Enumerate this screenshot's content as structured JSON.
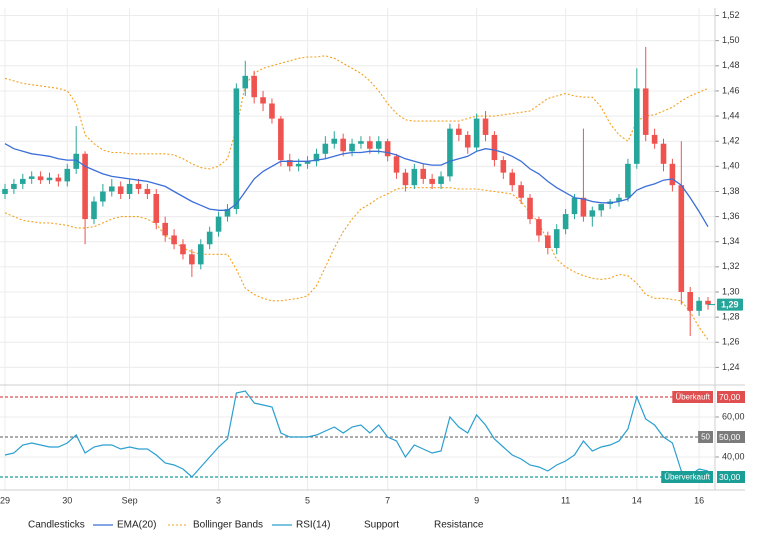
{
  "chart_data": [
    {
      "type": "candlestick",
      "categories": [
        "29",
        null,
        null,
        null,
        null,
        null,
        null,
        "30",
        null,
        null,
        null,
        null,
        null,
        null,
        "Sep",
        null,
        null,
        null,
        null,
        null,
        null,
        null,
        null,
        null,
        "3",
        null,
        null,
        null,
        null,
        null,
        null,
        null,
        null,
        null,
        "5",
        null,
        null,
        null,
        null,
        null,
        null,
        null,
        null,
        "7",
        null,
        null,
        null,
        null,
        null,
        null,
        null,
        null,
        null,
        "9",
        null,
        null,
        null,
        null,
        null,
        null,
        null,
        null,
        null,
        "11",
        null,
        null,
        null,
        null,
        null,
        null,
        null,
        "14",
        null,
        null,
        null,
        null,
        null,
        null,
        "16",
        null
      ],
      "candles": {
        "name": "Candlesticks",
        "up_color": "#26a69a",
        "down_color": "#ef5350",
        "open": [
          1.378,
          1.382,
          1.386,
          1.39,
          1.392,
          1.389,
          1.391,
          1.388,
          1.398,
          1.41,
          1.358,
          1.372,
          1.38,
          1.384,
          1.378,
          1.386,
          1.382,
          1.378,
          1.355,
          1.345,
          1.338,
          1.33,
          1.322,
          1.338,
          1.348,
          1.36,
          1.366,
          1.462,
          1.472,
          1.455,
          1.45,
          1.438,
          1.405,
          1.4,
          1.402,
          1.404,
          1.41,
          1.418,
          1.422,
          1.412,
          1.418,
          1.42,
          1.414,
          1.42,
          1.408,
          1.395,
          1.385,
          1.398,
          1.39,
          1.386,
          1.392,
          1.43,
          1.425,
          1.415,
          1.438,
          1.425,
          1.405,
          1.395,
          1.385,
          1.375,
          1.358,
          1.345,
          1.335,
          1.35,
          1.362,
          1.375,
          1.36,
          1.365,
          1.37,
          1.372,
          1.375,
          1.402,
          1.462,
          1.425,
          1.418,
          1.402,
          1.385,
          1.3,
          1.285,
          1.293
        ],
        "high": [
          1.386,
          1.39,
          1.394,
          1.396,
          1.396,
          1.395,
          1.394,
          1.402,
          1.432,
          1.412,
          1.376,
          1.386,
          1.39,
          1.388,
          1.39,
          1.39,
          1.386,
          1.382,
          1.36,
          1.35,
          1.342,
          1.334,
          1.342,
          1.352,
          1.364,
          1.37,
          1.466,
          1.484,
          1.476,
          1.46,
          1.454,
          1.44,
          1.41,
          1.406,
          1.408,
          1.414,
          1.424,
          1.428,
          1.426,
          1.422,
          1.424,
          1.424,
          1.424,
          1.422,
          1.41,
          1.398,
          1.402,
          1.402,
          1.394,
          1.396,
          1.434,
          1.434,
          1.428,
          1.442,
          1.444,
          1.428,
          1.408,
          1.398,
          1.388,
          1.378,
          1.36,
          1.348,
          1.354,
          1.366,
          1.378,
          1.43,
          1.368,
          1.37,
          1.374,
          1.378,
          1.406,
          1.478,
          1.495,
          1.43,
          1.422,
          1.406,
          1.42,
          1.304,
          1.296,
          1.296
        ],
        "low": [
          1.374,
          1.378,
          1.382,
          1.386,
          1.386,
          1.386,
          1.384,
          1.384,
          1.394,
          1.338,
          1.354,
          1.368,
          1.376,
          1.374,
          1.374,
          1.378,
          1.374,
          1.35,
          1.34,
          1.334,
          1.326,
          1.312,
          1.318,
          1.334,
          1.344,
          1.356,
          1.362,
          1.456,
          1.45,
          1.444,
          1.434,
          1.4,
          1.396,
          1.396,
          1.398,
          1.4,
          1.406,
          1.414,
          1.408,
          1.408,
          1.414,
          1.41,
          1.41,
          1.404,
          1.39,
          1.38,
          1.382,
          1.386,
          1.382,
          1.382,
          1.388,
          1.42,
          1.41,
          1.412,
          1.42,
          1.4,
          1.39,
          1.38,
          1.37,
          1.354,
          1.34,
          1.33,
          1.33,
          1.346,
          1.358,
          1.356,
          1.352,
          1.36,
          1.366,
          1.368,
          1.372,
          1.398,
          1.42,
          1.414,
          1.396,
          1.38,
          1.29,
          1.265,
          1.281,
          1.286
        ],
        "close": [
          1.382,
          1.386,
          1.39,
          1.392,
          1.389,
          1.391,
          1.388,
          1.398,
          1.41,
          1.358,
          1.372,
          1.38,
          1.384,
          1.378,
          1.386,
          1.382,
          1.378,
          1.355,
          1.345,
          1.338,
          1.33,
          1.322,
          1.338,
          1.348,
          1.36,
          1.366,
          1.462,
          1.472,
          1.455,
          1.45,
          1.438,
          1.405,
          1.4,
          1.402,
          1.404,
          1.41,
          1.418,
          1.422,
          1.412,
          1.418,
          1.42,
          1.414,
          1.42,
          1.408,
          1.395,
          1.385,
          1.398,
          1.39,
          1.386,
          1.392,
          1.43,
          1.425,
          1.415,
          1.438,
          1.425,
          1.405,
          1.395,
          1.385,
          1.375,
          1.358,
          1.345,
          1.335,
          1.35,
          1.362,
          1.375,
          1.36,
          1.365,
          1.37,
          1.372,
          1.375,
          1.402,
          1.462,
          1.425,
          1.418,
          1.402,
          1.385,
          1.3,
          1.285,
          1.293,
          1.29
        ]
      },
      "ema": {
        "name": "EMA(20)",
        "color": "#3b6fd8",
        "values": [
          1.418,
          1.414,
          1.412,
          1.41,
          1.409,
          1.408,
          1.406,
          1.405,
          1.405,
          1.4,
          1.397,
          1.394,
          1.392,
          1.391,
          1.39,
          1.389,
          1.388,
          1.386,
          1.384,
          1.38,
          1.376,
          1.372,
          1.369,
          1.366,
          1.365,
          1.365,
          1.37,
          1.38,
          1.39,
          1.396,
          1.4,
          1.404,
          1.404,
          1.404,
          1.404,
          1.405,
          1.406,
          1.408,
          1.41,
          1.411,
          1.411,
          1.412,
          1.412,
          1.411,
          1.409,
          1.406,
          1.404,
          1.402,
          1.401,
          1.401,
          1.404,
          1.406,
          1.408,
          1.412,
          1.414,
          1.413,
          1.411,
          1.408,
          1.404,
          1.398,
          1.394,
          1.388,
          1.383,
          1.379,
          1.375,
          1.374,
          1.372,
          1.371,
          1.371,
          1.372,
          1.374,
          1.381,
          1.384,
          1.386,
          1.389,
          1.39,
          1.385,
          1.375,
          1.364,
          1.352
        ]
      },
      "bollinger": {
        "name": "Bollinger Bands",
        "color": "#f5a01e",
        "upper": [
          1.47,
          1.468,
          1.466,
          1.465,
          1.464,
          1.463,
          1.462,
          1.46,
          1.45,
          1.425,
          1.418,
          1.413,
          1.411,
          1.411,
          1.41,
          1.41,
          1.41,
          1.41,
          1.41,
          1.409,
          1.406,
          1.402,
          1.399,
          1.398,
          1.4,
          1.406,
          1.43,
          1.465,
          1.474,
          1.478,
          1.48,
          1.482,
          1.484,
          1.486,
          1.487,
          1.487,
          1.488,
          1.486,
          1.482,
          1.478,
          1.474,
          1.468,
          1.46,
          1.45,
          1.442,
          1.437,
          1.436,
          1.436,
          1.436,
          1.436,
          1.436,
          1.436,
          1.438,
          1.44,
          1.44,
          1.44,
          1.441,
          1.442,
          1.443,
          1.444,
          1.449,
          1.454,
          1.456,
          1.458,
          1.456,
          1.455,
          1.455,
          1.447,
          1.434,
          1.425,
          1.42,
          1.436,
          1.44,
          1.441,
          1.444,
          1.447,
          1.452,
          1.456,
          1.459,
          1.462
        ],
        "lower": [
          1.363,
          1.36,
          1.357,
          1.356,
          1.355,
          1.355,
          1.354,
          1.353,
          1.351,
          1.351,
          1.352,
          1.355,
          1.358,
          1.36,
          1.36,
          1.36,
          1.358,
          1.354,
          1.345,
          1.34,
          1.335,
          1.332,
          1.33,
          1.33,
          1.33,
          1.33,
          1.318,
          1.303,
          1.298,
          1.295,
          1.293,
          1.293,
          1.294,
          1.295,
          1.297,
          1.305,
          1.32,
          1.335,
          1.348,
          1.358,
          1.366,
          1.37,
          1.375,
          1.378,
          1.382,
          1.383,
          1.383,
          1.383,
          1.383,
          1.383,
          1.383,
          1.382,
          1.382,
          1.382,
          1.381,
          1.38,
          1.379,
          1.378,
          1.372,
          1.363,
          1.355,
          1.34,
          1.326,
          1.32,
          1.316,
          1.313,
          1.311,
          1.31,
          1.311,
          1.314,
          1.313,
          1.307,
          1.298,
          1.295,
          1.295,
          1.294,
          1.293,
          1.284,
          1.272,
          1.262
        ]
      },
      "ylim": [
        1.226,
        1.526
      ],
      "yticks": [
        {
          "value": 1.52,
          "label": "1,52"
        },
        {
          "value": 1.5,
          "label": "1,50"
        },
        {
          "value": 1.48,
          "label": "1,48"
        },
        {
          "value": 1.46,
          "label": "1,46"
        },
        {
          "value": 1.44,
          "label": "1,44"
        },
        {
          "value": 1.42,
          "label": "1,42"
        },
        {
          "value": 1.4,
          "label": "1,40"
        },
        {
          "value": 1.38,
          "label": "1,38"
        },
        {
          "value": 1.36,
          "label": "1,36"
        },
        {
          "value": 1.34,
          "label": "1,34"
        },
        {
          "value": 1.32,
          "label": "1,32"
        },
        {
          "value": 1.3,
          "label": "1,30"
        },
        {
          "value": 1.28,
          "label": "1,28"
        },
        {
          "value": 1.26,
          "label": "1,26"
        },
        {
          "value": 1.24,
          "label": "1,24"
        }
      ],
      "current_price": {
        "value": 1.29,
        "label": "1,29",
        "color": "#26a69a"
      },
      "extra_legend": [
        "Support",
        "Resistance"
      ],
      "grid": true
    },
    {
      "type": "line",
      "series": [
        {
          "name": "RSI(14)",
          "color": "#2a9fd0",
          "values": [
            41,
            42,
            46,
            47,
            46,
            45,
            45,
            47,
            51,
            42,
            45,
            46,
            46,
            44,
            45,
            44,
            44,
            41,
            37,
            36,
            34,
            30,
            35,
            40,
            45,
            49,
            72,
            73,
            67,
            66,
            65,
            52,
            50,
            50,
            50,
            51,
            53,
            55,
            52,
            55,
            56,
            52,
            56,
            50,
            48,
            40,
            46,
            44,
            42,
            43,
            60,
            55,
            52,
            61,
            56,
            49,
            45,
            41,
            39,
            36,
            35,
            33,
            36,
            38,
            41,
            48,
            43,
            45,
            46,
            48,
            54,
            70,
            59,
            56,
            50,
            47,
            33,
            31,
            34,
            33
          ]
        }
      ],
      "ylim": [
        23.5,
        76
      ],
      "yticks": [
        {
          "value": 60,
          "label": "60,00"
        },
        {
          "value": 40,
          "label": "40,00"
        }
      ],
      "levels": [
        {
          "name": "Überkauft",
          "value": 70,
          "label": "70,00",
          "color": "#e04f4f"
        },
        {
          "name": "50",
          "value": 50,
          "label": "50,00",
          "color": "#7b7b7b"
        },
        {
          "name": "Überverkauft",
          "value": 30,
          "label": "30,00",
          "color": "#1a9e96"
        }
      ],
      "grid": true
    }
  ]
}
